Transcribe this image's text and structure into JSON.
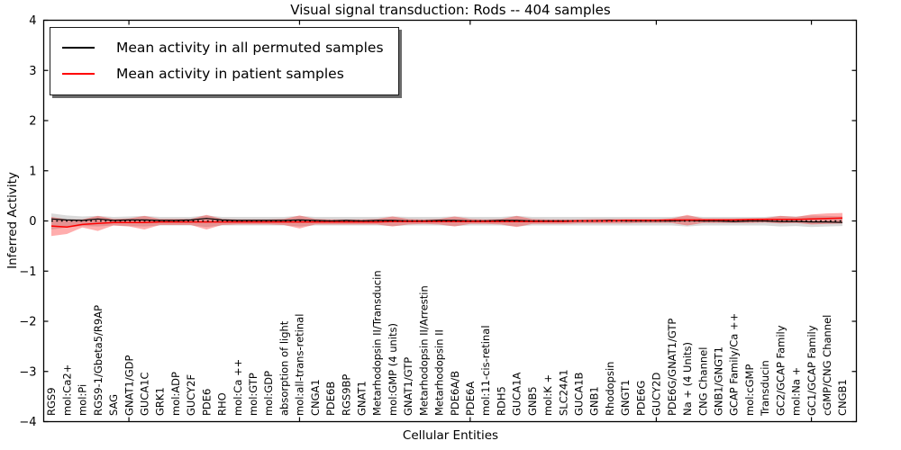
{
  "title": "Visual signal transduction: Rods -- 404 samples",
  "axes": {
    "ylabel": "Inferred Activity",
    "xlabel": "Cellular Entities"
  },
  "legend": {
    "items": [
      {
        "label": "Mean activity in all permuted samples",
        "color": "#000000"
      },
      {
        "label": "Mean activity in patient samples",
        "color": "#ff0000"
      }
    ]
  },
  "chart_data": {
    "type": "line",
    "title": "Visual signal transduction: Rods -- 404 samples",
    "xlabel": "Cellular Entities",
    "ylabel": "Inferred Activity",
    "ylim": [
      -4,
      4
    ],
    "yticks": [
      4,
      3,
      2,
      1,
      0,
      -1,
      -2,
      -3,
      -4
    ],
    "grid": false,
    "legend_position": "upper left",
    "layout": {
      "top_tick_indices": [
        5,
        16,
        27,
        39,
        49
      ]
    },
    "categories": [
      "RGS9",
      "mol:Ca2+",
      "mol:Pi",
      "RGS9-1/Gbeta5/R9AP",
      "SAG",
      "GNAT1/GDP",
      "GUCA1C",
      "GRK1",
      "mol:ADP",
      "GUCY2F",
      "PDE6",
      "RHO",
      "mol:Ca ++",
      "mol:GTP",
      "mol:GDP",
      "absorption of light",
      "mol:all-trans-retinal",
      "CNGA1",
      "PDE6B",
      "RGS9BP",
      "GNAT1",
      "Metarhodopsin II/Transducin",
      "mol:GMP (4 units)",
      "GNAT1/GTP",
      "Metarhodopsin II/Arrestin",
      "Metarhodopsin II",
      "PDE6A/B",
      "PDE6A",
      "mol:11-cis-retinal",
      "RDH5",
      "GUCA1A",
      "GNB5",
      "mol:K +",
      "SLC24A1",
      "GUCA1B",
      "GNB1",
      "Rhodopsin",
      "GNGT1",
      "PDE6G",
      "GUCY2D",
      "PDE6G/GNAT1/GTP",
      "Na + (4 Units)",
      "CNG Channel",
      "GNB1/GNGT1",
      "GCAP Family/Ca ++",
      "mol:cGMP",
      "Transducin",
      "GC2/GCAP Family",
      "mol:Na +",
      "GC1/GCAP Family",
      "cGMP/CNG Channel",
      "CNGB1"
    ],
    "series": [
      {
        "name": "Mean activity in all permuted samples",
        "color": "#000000",
        "style": "solid",
        "width": 1.2,
        "values": [
          0.04,
          0.02,
          0.01,
          0.04,
          0.01,
          0.02,
          0.02,
          0.01,
          0.01,
          0.02,
          0.05,
          0.02,
          0.01,
          0.01,
          0.01,
          0.01,
          0.02,
          0.01,
          0.0,
          0.01,
          0.0,
          0.01,
          0.01,
          0.0,
          0.0,
          0.01,
          0.01,
          0.0,
          0.0,
          0.01,
          0.01,
          0.0,
          0.0,
          0.0,
          0.0,
          0.0,
          0.01,
          0.0,
          0.0,
          0.0,
          0.0,
          0.01,
          0.0,
          0.0,
          -0.01,
          0.0,
          0.0,
          -0.01,
          -0.01,
          -0.02,
          -0.02,
          -0.03
        ]
      },
      {
        "name": "Mean activity in patient samples",
        "color": "#ff0000",
        "style": "solid",
        "width": 1.5,
        "values": [
          -0.1,
          -0.12,
          -0.07,
          -0.05,
          -0.03,
          -0.03,
          -0.03,
          -0.02,
          -0.02,
          -0.02,
          -0.02,
          -0.02,
          -0.02,
          -0.02,
          -0.02,
          -0.02,
          -0.02,
          -0.02,
          -0.02,
          -0.02,
          -0.02,
          -0.02,
          -0.01,
          -0.01,
          -0.01,
          -0.01,
          -0.01,
          -0.01,
          -0.01,
          -0.01,
          -0.01,
          -0.01,
          -0.01,
          -0.01,
          0.0,
          0.0,
          0.0,
          0.01,
          0.01,
          0.01,
          0.02,
          0.02,
          0.02,
          0.02,
          0.02,
          0.03,
          0.03,
          0.03,
          0.03,
          0.04,
          0.05,
          0.06
        ]
      }
    ],
    "bands": [
      {
        "name": "permuted-samples-range",
        "color": "#aaaaaa",
        "opacity": 0.45,
        "upper": [
          0.15,
          0.11,
          0.09,
          0.1,
          0.08,
          0.09,
          0.1,
          0.08,
          0.08,
          0.08,
          0.11,
          0.08,
          0.08,
          0.08,
          0.08,
          0.08,
          0.1,
          0.08,
          0.08,
          0.08,
          0.08,
          0.08,
          0.09,
          0.08,
          0.08,
          0.08,
          0.09,
          0.08,
          0.08,
          0.08,
          0.1,
          0.08,
          0.08,
          0.08,
          0.08,
          0.08,
          0.08,
          0.08,
          0.08,
          0.08,
          0.08,
          0.1,
          0.08,
          0.08,
          0.08,
          0.08,
          0.08,
          0.1,
          0.09,
          0.11,
          0.1,
          0.09
        ],
        "lower": [
          -0.17,
          -0.13,
          -0.1,
          -0.11,
          -0.09,
          -0.1,
          -0.11,
          -0.09,
          -0.09,
          -0.09,
          -0.12,
          -0.09,
          -0.09,
          -0.09,
          -0.09,
          -0.09,
          -0.11,
          -0.09,
          -0.09,
          -0.09,
          -0.09,
          -0.09,
          -0.1,
          -0.09,
          -0.09,
          -0.09,
          -0.1,
          -0.09,
          -0.09,
          -0.09,
          -0.11,
          -0.09,
          -0.09,
          -0.09,
          -0.09,
          -0.09,
          -0.09,
          -0.09,
          -0.09,
          -0.09,
          -0.09,
          -0.11,
          -0.09,
          -0.09,
          -0.09,
          -0.09,
          -0.09,
          -0.11,
          -0.1,
          -0.12,
          -0.11,
          -0.1
        ]
      },
      {
        "name": "patient-samples-range",
        "color": "#ff0000",
        "opacity": 0.32,
        "upper": [
          0.08,
          0.03,
          0.03,
          0.1,
          0.04,
          0.05,
          0.1,
          0.04,
          0.04,
          0.04,
          0.12,
          0.04,
          0.03,
          0.03,
          0.03,
          0.04,
          0.11,
          0.04,
          0.03,
          0.03,
          0.03,
          0.04,
          0.09,
          0.04,
          0.03,
          0.04,
          0.09,
          0.04,
          0.03,
          0.04,
          0.1,
          0.04,
          0.03,
          0.03,
          0.03,
          0.04,
          0.04,
          0.04,
          0.04,
          0.04,
          0.05,
          0.12,
          0.05,
          0.05,
          0.05,
          0.05,
          0.06,
          0.1,
          0.08,
          0.13,
          0.15,
          0.16
        ],
        "lower": [
          -0.3,
          -0.26,
          -0.13,
          -0.2,
          -0.09,
          -0.11,
          -0.17,
          -0.08,
          -0.08,
          -0.08,
          -0.17,
          -0.08,
          -0.07,
          -0.07,
          -0.07,
          -0.08,
          -0.15,
          -0.07,
          -0.07,
          -0.07,
          -0.07,
          -0.07,
          -0.11,
          -0.07,
          -0.06,
          -0.07,
          -0.11,
          -0.06,
          -0.06,
          -0.07,
          -0.12,
          -0.06,
          -0.06,
          -0.06,
          -0.05,
          -0.05,
          -0.05,
          -0.05,
          -0.04,
          -0.04,
          -0.04,
          -0.09,
          -0.04,
          -0.04,
          -0.04,
          -0.04,
          -0.03,
          -0.05,
          -0.04,
          -0.07,
          -0.06,
          -0.05
        ]
      }
    ],
    "zero_line": {
      "style": "dotted",
      "color": "#000000",
      "y": 0
    }
  }
}
